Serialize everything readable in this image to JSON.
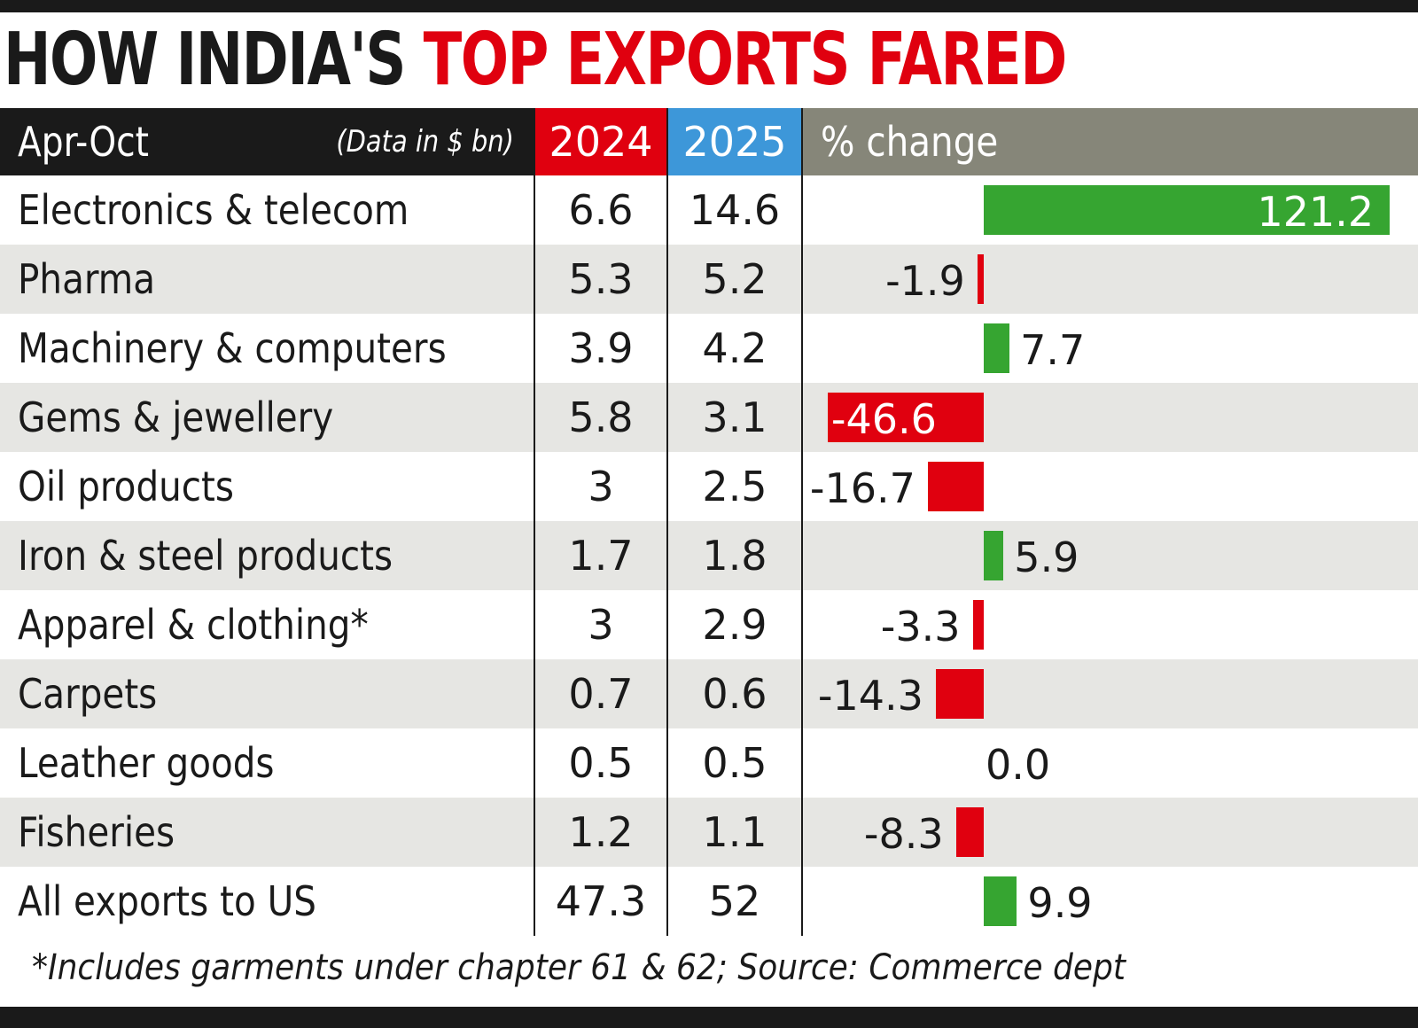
{
  "title": {
    "part1": "HOW INDIA'S",
    "part2": "TOP EXPORTS FARED"
  },
  "header": {
    "period": "Apr-Oct",
    "unit": "(Data in $ bn)",
    "col1": "2024",
    "col2": "2025",
    "col3": "% change"
  },
  "colors": {
    "positive": "#36a531",
    "negative": "#e0000f",
    "header_2024": "#e0000f",
    "header_2025": "#3d97d9",
    "header_change": "#868679",
    "row_alt": "#e6e6e3"
  },
  "chart_data": {
    "type": "bar",
    "orientation": "horizontal",
    "categories": [
      "Electronics & telecom",
      "Pharma",
      "Machinery & computers",
      "Gems & jewellery",
      "Oil products",
      "Iron & steel products",
      "Apparel & clothing*",
      "Carpets",
      "Leather goods",
      "Fisheries",
      "All exports to US"
    ],
    "v2024": [
      "6.6",
      "5.3",
      "3.9",
      "5.8",
      "3",
      "1.7",
      "3",
      "0.7",
      "0.5",
      "1.2",
      "47.3"
    ],
    "v2025": [
      "14.6",
      "5.2",
      "4.2",
      "3.1",
      "2.5",
      "1.8",
      "2.9",
      "0.6",
      "0.5",
      "1.1",
      "52"
    ],
    "series": [
      {
        "name": "% change",
        "values": [
          121.2,
          -1.9,
          7.7,
          -46.6,
          -16.7,
          5.9,
          -3.3,
          -14.3,
          0.0,
          -8.3,
          9.9
        ]
      }
    ]
  },
  "footnote": "*Includes garments under chapter 61 & 62; Source: Commerce dept"
}
